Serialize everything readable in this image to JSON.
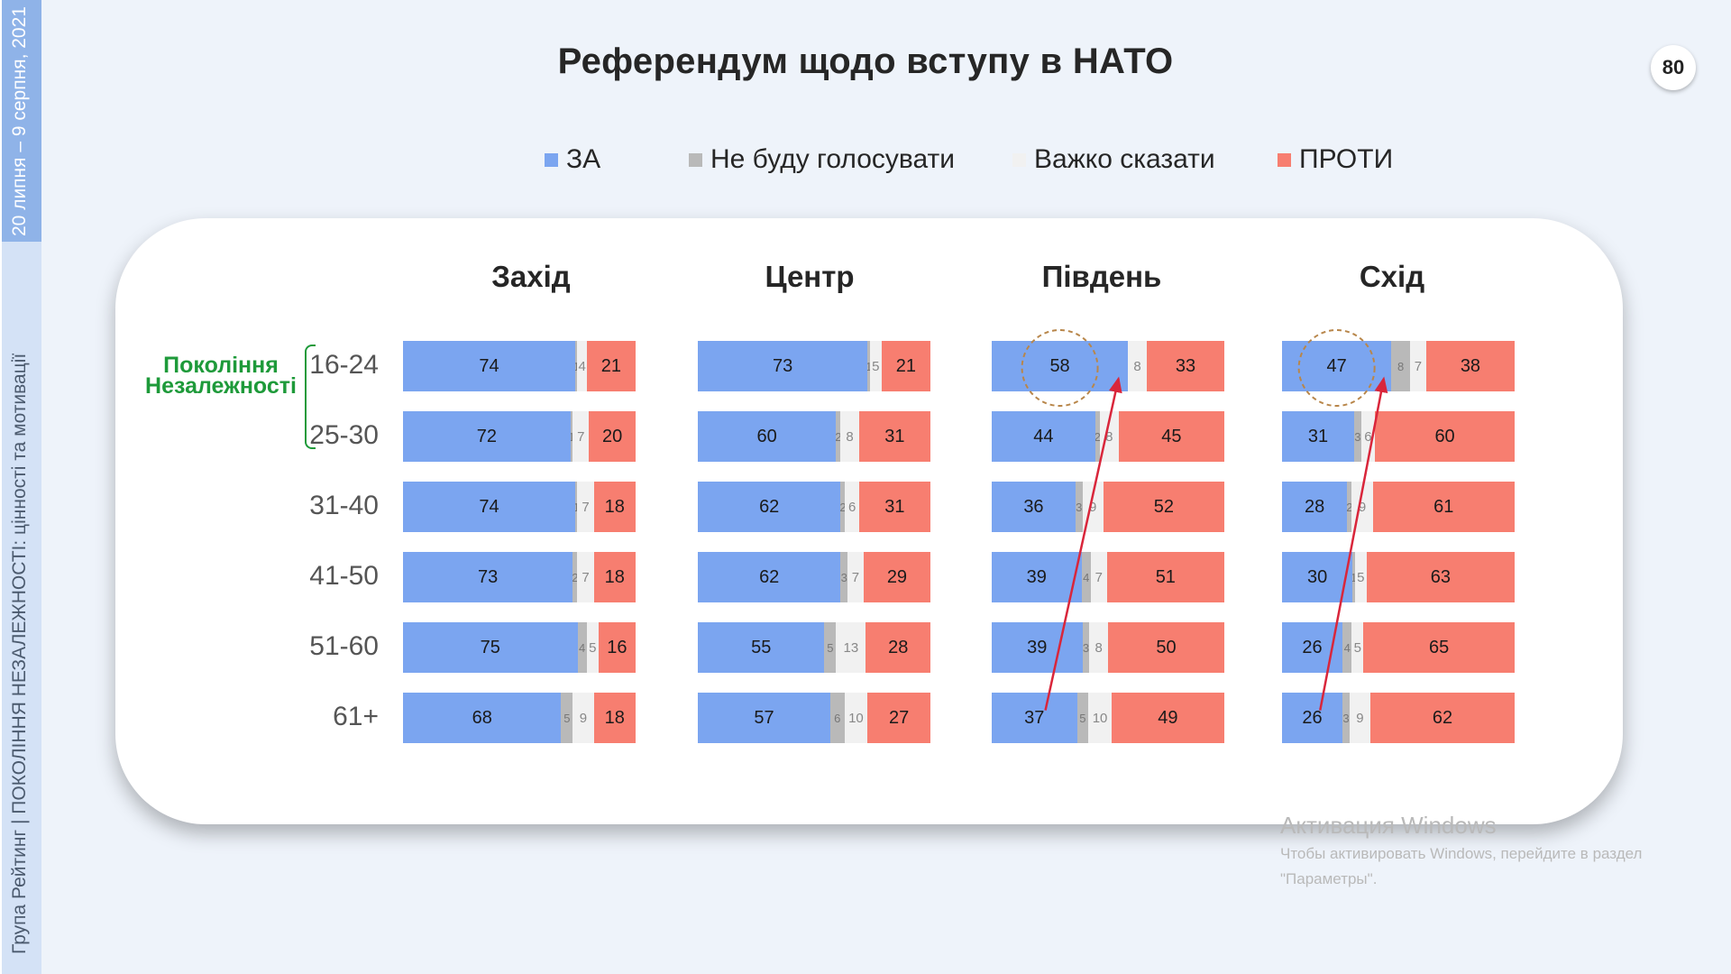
{
  "slide": {
    "title": "Референдум щодо вступу в НАТО",
    "page_number": "80",
    "side_date": "20 липня – 9 серпня, 2021",
    "side_org": "Група Рейтинг | ПОКОЛІННЯ НЕЗАЛЕЖНОСТІ: цінності та мотивації",
    "generation_label": "Покоління Незалежності"
  },
  "watermark": {
    "title": "Активация Windows",
    "line1": "Чтобы активировать Windows, перейдите в раздел",
    "line2": "\"Параметры\"."
  },
  "colors": {
    "za": "#7ba5f0",
    "ne_budu": "#b9b9b9",
    "vazhko": "#f1f1f1",
    "proty": "#f77e70",
    "generation": "#1e9a3a",
    "side_bar": "#8fb3e8",
    "annotation": "#d9263b"
  },
  "chart_data": {
    "type": "bar",
    "stacked": true,
    "orientation": "horizontal",
    "title": "Референдум щодо вступу в НАТО",
    "legend": [
      "ЗА",
      "Не буду голосувати",
      "Важко сказати",
      "ПРОТИ"
    ],
    "legend_position": "top",
    "categories": [
      "16-24",
      "25-30",
      "31-40",
      "41-50",
      "51-60",
      "61+"
    ],
    "panels": [
      {
        "name": "Захід",
        "series": [
          {
            "name": "ЗА",
            "values": [
              74,
              72,
              74,
              73,
              75,
              68
            ]
          },
          {
            "name": "Не буду голосувати",
            "values": [
              1,
              1,
              1,
              2,
              4,
              5
            ]
          },
          {
            "name": "Важко сказати",
            "values": [
              4,
              7,
              7,
              7,
              5,
              9
            ]
          },
          {
            "name": "ПРОТИ",
            "values": [
              21,
              20,
              18,
              18,
              16,
              18
            ]
          }
        ]
      },
      {
        "name": "Центр",
        "series": [
          {
            "name": "ЗА",
            "values": [
              73,
              60,
              62,
              62,
              55,
              57
            ]
          },
          {
            "name": "Не буду голосувати",
            "values": [
              1,
              2,
              2,
              3,
              5,
              6
            ]
          },
          {
            "name": "Важко сказати",
            "values": [
              5,
              8,
              6,
              7,
              13,
              10
            ]
          },
          {
            "name": "ПРОТИ",
            "values": [
              21,
              31,
              31,
              29,
              28,
              27
            ]
          }
        ]
      },
      {
        "name": "Південь",
        "series": [
          {
            "name": "ЗА",
            "values": [
              58,
              44,
              36,
              39,
              39,
              37
            ]
          },
          {
            "name": "Не буду голосувати",
            "values": [
              0,
              2,
              3,
              4,
              3,
              5
            ]
          },
          {
            "name": "Важко сказати",
            "values": [
              8,
              8,
              9,
              7,
              8,
              10
            ]
          },
          {
            "name": "ПРОТИ",
            "values": [
              33,
              45,
              52,
              51,
              50,
              49
            ]
          }
        ],
        "highlight": {
          "from": "61+",
          "to": "16-24"
        }
      },
      {
        "name": "Схід",
        "series": [
          {
            "name": "ЗА",
            "values": [
              47,
              31,
              28,
              30,
              26,
              26
            ]
          },
          {
            "name": "Не буду голосувати",
            "values": [
              8,
              3,
              2,
              1,
              4,
              3
            ]
          },
          {
            "name": "Важко сказати",
            "values": [
              7,
              6,
              9,
              5,
              5,
              9
            ]
          },
          {
            "name": "ПРОТИ",
            "values": [
              38,
              60,
              61,
              63,
              65,
              62
            ]
          }
        ],
        "highlight": {
          "from": "61+",
          "to": "16-24"
        }
      }
    ]
  }
}
